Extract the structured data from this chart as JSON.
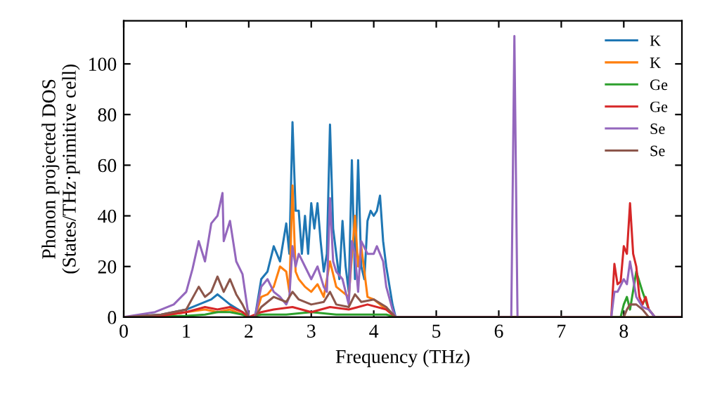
{
  "chart_data": {
    "type": "line",
    "xlabel": "Frequency (THz)",
    "ylabel": "Phonon projected DOS\n(States/THz·primitive cell)",
    "xlim": [
      0,
      8.93
    ],
    "ylim": [
      0,
      117
    ],
    "xticks": [
      0,
      1,
      2,
      3,
      4,
      5,
      6,
      7,
      8
    ],
    "yticks": [
      0,
      20,
      40,
      60,
      80,
      100
    ],
    "grid": false,
    "legend": "top right",
    "marker": "none",
    "line_style": "solid",
    "series": [
      {
        "name": "K",
        "color": "#1f77b4",
        "x": [
          0,
          0.6,
          1.0,
          1.2,
          1.4,
          1.5,
          1.6,
          1.7,
          1.9,
          2.0,
          2.1,
          2.2,
          2.3,
          2.4,
          2.5,
          2.6,
          2.65,
          2.7,
          2.75,
          2.8,
          2.85,
          2.9,
          2.95,
          3.0,
          3.05,
          3.1,
          3.15,
          3.2,
          3.25,
          3.3,
          3.35,
          3.4,
          3.45,
          3.5,
          3.55,
          3.6,
          3.65,
          3.7,
          3.75,
          3.8,
          3.85,
          3.9,
          3.95,
          4.0,
          4.05,
          4.1,
          4.15,
          4.2,
          4.3,
          4.35,
          8.9
        ],
        "values": [
          0,
          1,
          3,
          5,
          7,
          9,
          7,
          5,
          2,
          0,
          0,
          15,
          18,
          28,
          22,
          37,
          25,
          77,
          42,
          42,
          25,
          40,
          25,
          45,
          35,
          45,
          30,
          18,
          25,
          76,
          35,
          25,
          15,
          38,
          20,
          10,
          62,
          15,
          62,
          20,
          15,
          38,
          42,
          40,
          42,
          48,
          30,
          20,
          5,
          0,
          0
        ]
      },
      {
        "name": "K",
        "color": "#ff7f0e",
        "x": [
          0,
          0.6,
          1.0,
          1.3,
          1.5,
          1.7,
          1.9,
          2.0,
          2.1,
          2.2,
          2.3,
          2.4,
          2.5,
          2.6,
          2.65,
          2.7,
          2.75,
          2.8,
          2.9,
          3.0,
          3.1,
          3.2,
          3.3,
          3.4,
          3.5,
          3.6,
          3.7,
          3.75,
          3.8,
          3.9,
          4.0,
          4.1,
          4.2,
          4.35,
          8.9
        ],
        "values": [
          0,
          0.5,
          2,
          3,
          2,
          3,
          1,
          0,
          0,
          8,
          9,
          12,
          20,
          18,
          10,
          52,
          18,
          15,
          12,
          10,
          13,
          8,
          22,
          12,
          10,
          8,
          40,
          20,
          28,
          8,
          7,
          5,
          3,
          0,
          0
        ]
      },
      {
        "name": "Ge",
        "color": "#2ca02c",
        "x": [
          0,
          1.0,
          1.3,
          1.5,
          1.7,
          1.9,
          2.0,
          2.2,
          2.6,
          3.0,
          3.4,
          3.8,
          4.2,
          4.35,
          7.95,
          8.0,
          8.05,
          8.1,
          8.2,
          8.3,
          8.4,
          8.5,
          8.9
        ],
        "values": [
          0,
          0.5,
          1,
          2,
          2,
          1,
          0,
          1,
          1,
          2,
          1,
          1,
          1,
          0,
          0,
          5,
          8,
          3,
          18,
          10,
          3,
          0,
          0
        ]
      },
      {
        "name": "Ge",
        "color": "#d62728",
        "x": [
          0,
          0.6,
          1.0,
          1.3,
          1.5,
          1.7,
          1.9,
          2.0,
          2.2,
          2.4,
          2.7,
          3.0,
          3.3,
          3.6,
          3.9,
          4.2,
          4.35,
          7.8,
          7.85,
          7.9,
          7.95,
          8.0,
          8.05,
          8.1,
          8.15,
          8.2,
          8.25,
          8.3,
          8.35,
          8.4,
          8.5,
          8.9
        ],
        "values": [
          0,
          0.5,
          2,
          4,
          3,
          4,
          2,
          0,
          2,
          3,
          4,
          2,
          4,
          3,
          5,
          3,
          0,
          0,
          21,
          13,
          14,
          28,
          25,
          45,
          25,
          20,
          8,
          5,
          8,
          3,
          0,
          0
        ]
      },
      {
        "name": "Se",
        "color": "#9467bd",
        "x": [
          0,
          0.5,
          0.8,
          1.0,
          1.1,
          1.2,
          1.3,
          1.4,
          1.5,
          1.58,
          1.6,
          1.7,
          1.8,
          1.9,
          2.0,
          2.1,
          2.2,
          2.3,
          2.4,
          2.5,
          2.6,
          2.65,
          2.7,
          2.75,
          2.8,
          2.9,
          3.0,
          3.1,
          3.2,
          3.25,
          3.3,
          3.35,
          3.4,
          3.5,
          3.6,
          3.65,
          3.7,
          3.75,
          3.8,
          3.9,
          4.0,
          4.05,
          4.1,
          4.15,
          4.2,
          4.3,
          4.35,
          6.2,
          6.25,
          6.3,
          7.8,
          7.85,
          7.9,
          8.0,
          8.05,
          8.1,
          8.15,
          8.2,
          8.3,
          8.4,
          8.5,
          8.9
        ],
        "values": [
          0,
          2,
          5,
          10,
          19,
          30,
          22,
          37,
          40,
          49,
          30,
          38,
          22,
          17,
          0,
          0,
          12,
          15,
          10,
          8,
          5,
          8,
          28,
          20,
          25,
          20,
          15,
          20,
          12,
          10,
          47,
          22,
          18,
          15,
          5,
          30,
          25,
          10,
          30,
          25,
          25,
          28,
          25,
          22,
          12,
          3,
          0,
          0,
          111,
          0,
          0,
          10,
          10,
          15,
          13,
          22,
          15,
          8,
          4,
          3,
          0,
          0
        ]
      },
      {
        "name": "Se",
        "color": "#8c564b",
        "x": [
          0,
          0.6,
          1.0,
          1.2,
          1.3,
          1.4,
          1.5,
          1.6,
          1.7,
          1.8,
          1.9,
          2.0,
          2.1,
          2.2,
          2.4,
          2.6,
          2.7,
          2.8,
          3.0,
          3.2,
          3.3,
          3.4,
          3.6,
          3.7,
          3.8,
          4.0,
          4.2,
          4.35,
          8.0,
          8.05,
          8.1,
          8.2,
          8.3,
          8.4,
          8.9
        ],
        "values": [
          0,
          1,
          3,
          12,
          8,
          10,
          16,
          10,
          15,
          9,
          5,
          0,
          0,
          4,
          8,
          6,
          10,
          7,
          5,
          6,
          10,
          5,
          4,
          9,
          6,
          7,
          4,
          0,
          0,
          3,
          5,
          5,
          3,
          0,
          0
        ]
      }
    ]
  }
}
